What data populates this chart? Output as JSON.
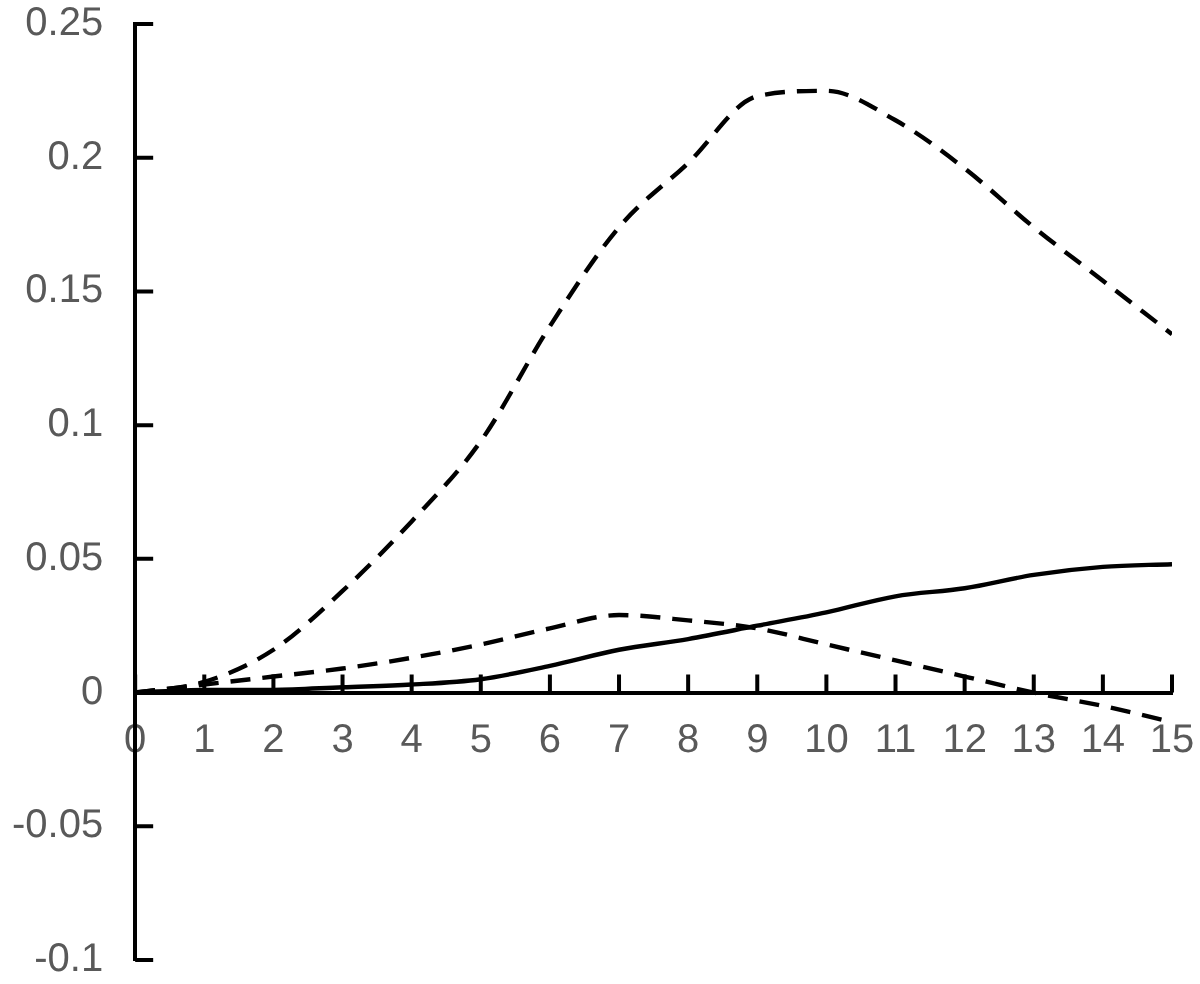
{
  "chart_data": {
    "type": "line",
    "x": [
      0,
      1,
      2,
      3,
      4,
      5,
      6,
      7,
      8,
      9,
      10,
      11,
      12,
      13,
      14,
      15
    ],
    "xlim": [
      0,
      15
    ],
    "xticks": [
      0,
      1,
      2,
      3,
      4,
      5,
      6,
      7,
      8,
      9,
      10,
      11,
      12,
      13,
      14,
      15
    ],
    "ylim": [
      -0.1,
      0.25
    ],
    "yticks": [
      -0.1,
      -0.05,
      0,
      0.05,
      0.1,
      0.15,
      0.2,
      0.25
    ],
    "grid": false,
    "legend": false,
    "marker": "none",
    "series": [
      {
        "color": "#000000",
        "line_style": "dashed",
        "values": [
          0,
          0.004,
          0.016,
          0.038,
          0.064,
          0.094,
          0.137,
          0.174,
          0.198,
          0.223,
          0.225,
          0.214,
          0.196,
          0.174,
          0.154,
          0.134
        ]
      },
      {
        "color": "#000000",
        "line_style": "dashed",
        "values": [
          0,
          0.003,
          0.006,
          0.009,
          0.013,
          0.018,
          0.024,
          0.029,
          0.027,
          0.024,
          0.018,
          0.012,
          0.006,
          0,
          -0.005,
          -0.011
        ]
      },
      {
        "color": "#000000",
        "line_style": "solid",
        "values": [
          0,
          0.001,
          0.001,
          0.002,
          0.003,
          0.005,
          0.01,
          0.016,
          0.02,
          0.025,
          0.03,
          0.036,
          0.039,
          0.044,
          0.047,
          0.048
        ]
      }
    ]
  }
}
